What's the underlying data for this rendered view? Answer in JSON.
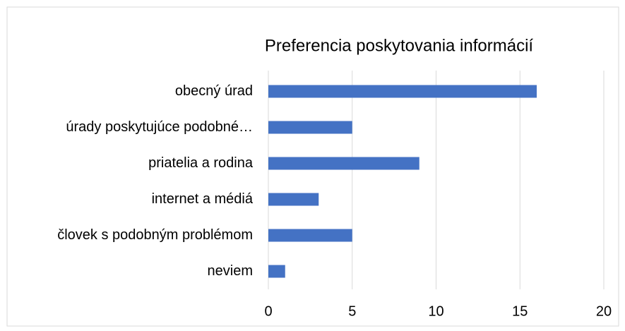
{
  "chart_data": {
    "type": "bar",
    "orientation": "horizontal",
    "title": "Preferencia poskytovania informácií",
    "categories": [
      "obecný úrad",
      "úrady poskytujúce podobné…",
      "priatelia a rodina",
      "internet a médiá",
      "človek s podobným problémom",
      "neviem"
    ],
    "values": [
      16,
      5,
      9,
      3,
      5,
      1
    ],
    "color": "#4472c4",
    "xlim": [
      0,
      20
    ],
    "xticks": [
      0,
      5,
      10,
      15,
      20
    ],
    "grid": true
  }
}
